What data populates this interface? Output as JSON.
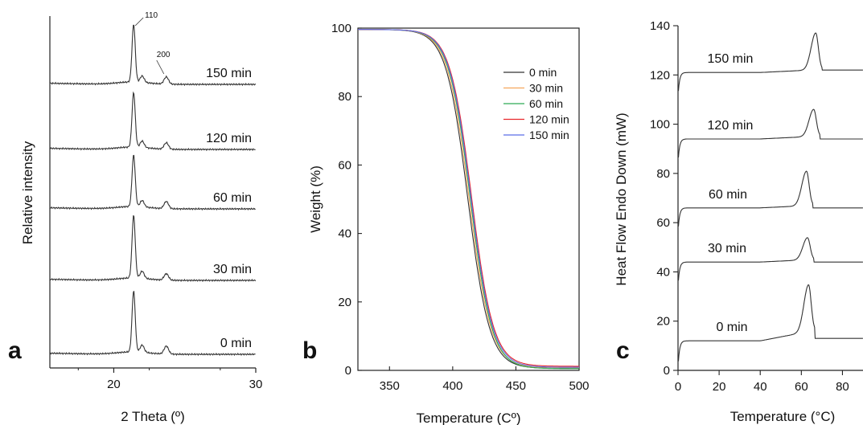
{
  "chart_data": [
    {
      "panel": "a",
      "type": "line",
      "xlabel": "2 Theta (º)",
      "ylabel": "Relative intensity",
      "xlim": [
        15.5,
        30
      ],
      "xticks": [
        20,
        30
      ],
      "peak_labels": [
        "110",
        "200"
      ],
      "peak_positions": [
        21.4,
        23.7
      ],
      "series": [
        {
          "name": "0 min",
          "baseline": 0,
          "peak110": 76,
          "peak200": 10,
          "shoulder": 9
        },
        {
          "name": "30 min",
          "baseline": 92,
          "peak110": 78,
          "peak200": 8,
          "shoulder": 9
        },
        {
          "name": "60 min",
          "baseline": 181,
          "peak110": 64,
          "peak200": 9,
          "shoulder": 8
        },
        {
          "name": "120 min",
          "baseline": 255,
          "peak110": 68,
          "peak200": 8,
          "shoulder": 8
        },
        {
          "name": "150 min",
          "baseline": 336,
          "peak110": 72,
          "peak200": 9,
          "shoulder": 8
        }
      ]
    },
    {
      "panel": "b",
      "type": "line",
      "xlabel": "Temperature (Cº)",
      "ylabel": "Weight (%)",
      "xlim": [
        325,
        500
      ],
      "ylim": [
        0,
        100
      ],
      "xticks": [
        350,
        400,
        450,
        500
      ],
      "yticks": [
        0,
        20,
        40,
        60,
        80,
        100
      ],
      "legend_position": "right",
      "series": [
        {
          "name": "0 min",
          "color": "#333333",
          "onset": 412,
          "residue": 0.6
        },
        {
          "name": "30 min",
          "color": "#f5a65b",
          "onset": 413,
          "residue": 0.8
        },
        {
          "name": "60 min",
          "color": "#2eaa55",
          "onset": 414,
          "residue": 0.5
        },
        {
          "name": "120 min",
          "color": "#e8262b",
          "onset": 415,
          "residue": 1.2
        },
        {
          "name": "150 min",
          "color": "#5b6ee8",
          "onset": 414.5,
          "residue": 0.9
        }
      ]
    },
    {
      "panel": "c",
      "type": "line",
      "xlabel": "Temperature (°C)",
      "ylabel": "Heat Flow Endo Down (mW)",
      "xlim": [
        0,
        90
      ],
      "ylim": [
        0,
        140
      ],
      "xticks": [
        0,
        20,
        40,
        60,
        80
      ],
      "yticks": [
        0,
        20,
        40,
        60,
        80,
        100,
        120,
        140
      ],
      "series": [
        {
          "name": "0 min",
          "baseline": 12,
          "peak_x": 63.5,
          "peak_height": 19,
          "end": 13
        },
        {
          "name": "30 min",
          "baseline": 44,
          "peak_x": 63,
          "peak_height": 9,
          "end": 44
        },
        {
          "name": "60 min",
          "baseline": 66,
          "peak_x": 62.5,
          "peak_height": 14,
          "end": 66
        },
        {
          "name": "120 min",
          "baseline": 94,
          "peak_x": 66,
          "peak_height": 11,
          "end": 94
        },
        {
          "name": "150 min",
          "baseline": 121,
          "peak_x": 67,
          "peak_height": 15,
          "end": 122
        }
      ]
    }
  ]
}
